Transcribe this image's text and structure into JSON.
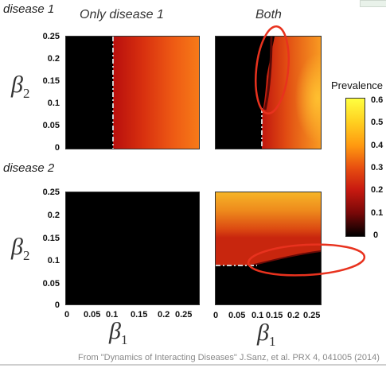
{
  "rows": [
    {
      "label": "disease 1"
    },
    {
      "label": "disease 2"
    }
  ],
  "columns": [
    {
      "title": "Only disease 1"
    },
    {
      "title": "Both"
    }
  ],
  "axes": {
    "y_label_symbol": "β",
    "y_label_sub": "2",
    "x_label_symbol": "β",
    "x_label_sub": "1",
    "y_ticks": [
      "0.25",
      "0.2",
      "0.15",
      "0.1",
      "0.05",
      "0"
    ],
    "x_ticks": [
      "0",
      "0.05",
      "0.1",
      "0.15",
      "0.2",
      "0.25"
    ]
  },
  "colorbar": {
    "title": "Prevalence",
    "ticks": [
      "0.6",
      "0.5",
      "0.4",
      "0.3",
      "0.2",
      "0.1",
      "0"
    ],
    "colors": [
      "#ffff40",
      "#ffd020",
      "#ff9a10",
      "#e85010",
      "#c81a10",
      "#7a0808",
      "#000000"
    ]
  },
  "footer": {
    "citation": "From \"Dynamics of Interacting Diseases\" J.Sanz, et al. PRX 4, 041005 (2014)"
  }
}
